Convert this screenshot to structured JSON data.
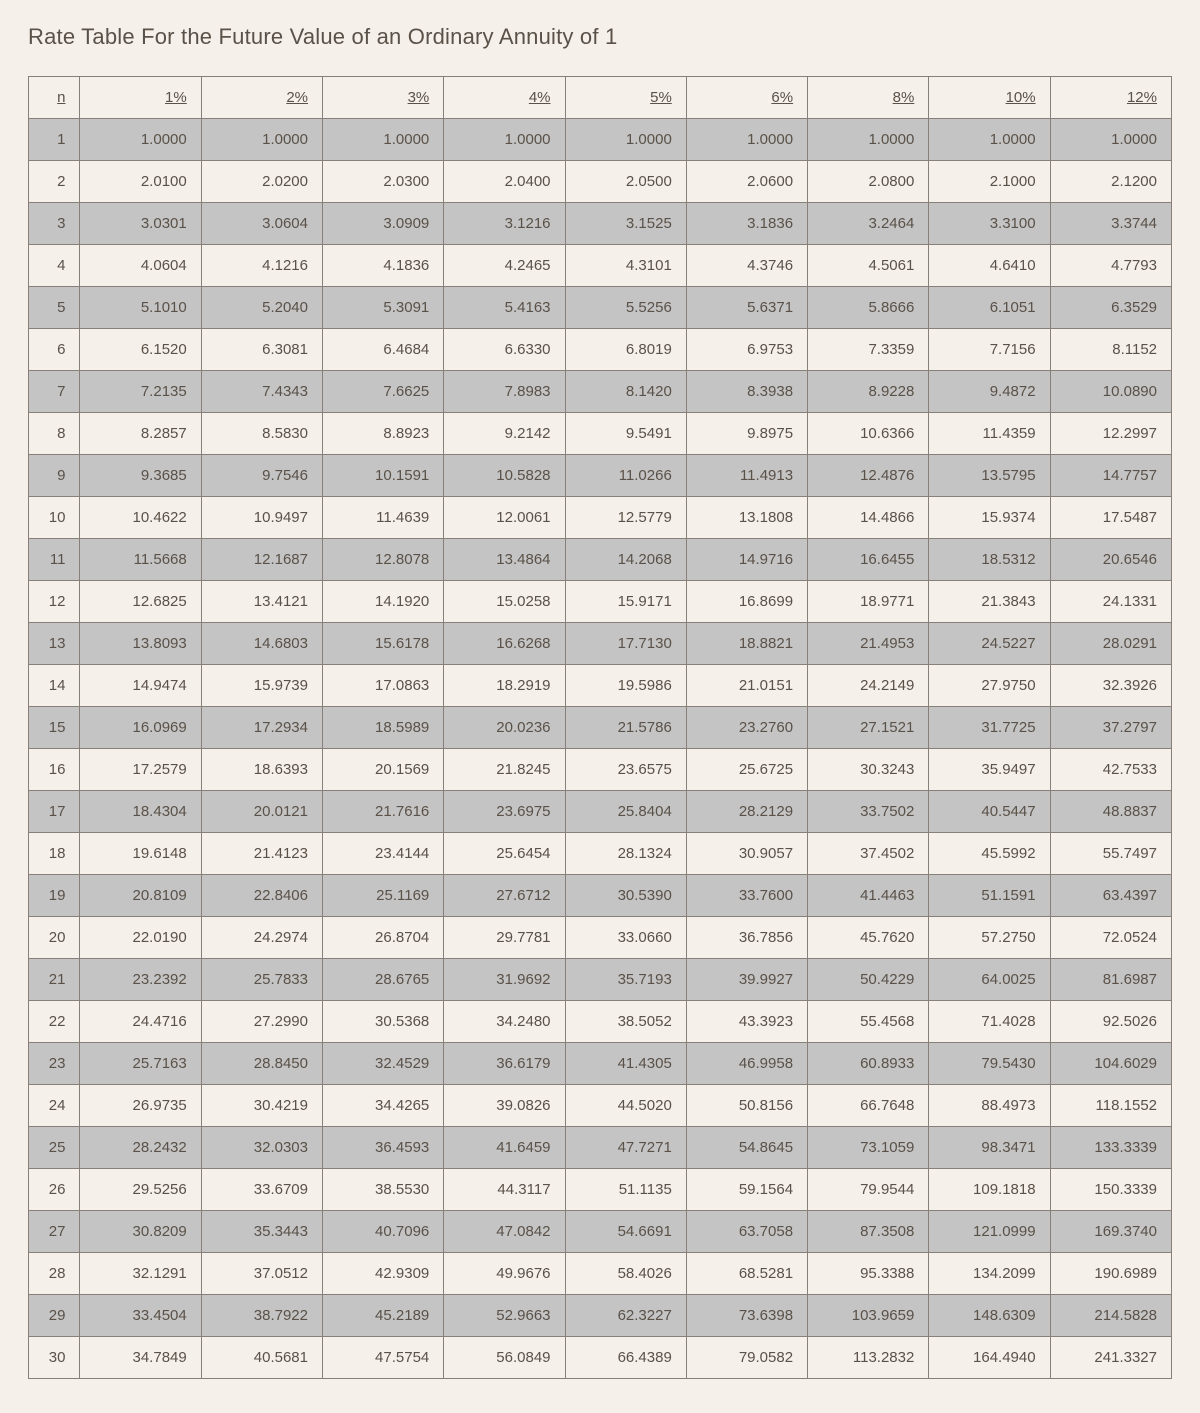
{
  "title": "Rate Table For the Future Value of an Ordinary Annuity of 1",
  "table": {
    "type": "table",
    "background_color": "#f5f0ea",
    "border_color": "#888078",
    "stripe_odd_color": "#c4c4c4",
    "stripe_even_color": "#f5f0ea",
    "text_color": "#5a5148",
    "font_size": 15,
    "title_fontsize": 22,
    "n_col_width_pct": 4.5,
    "rate_col_width_pct": 10.6,
    "columns": [
      "n",
      "1%",
      "2%",
      "3%",
      "4%",
      "5%",
      "6%",
      "8%",
      "10%",
      "12%"
    ],
    "rows": [
      [
        "1",
        "1.0000",
        "1.0000",
        "1.0000",
        "1.0000",
        "1.0000",
        "1.0000",
        "1.0000",
        "1.0000",
        "1.0000"
      ],
      [
        "2",
        "2.0100",
        "2.0200",
        "2.0300",
        "2.0400",
        "2.0500",
        "2.0600",
        "2.0800",
        "2.1000",
        "2.1200"
      ],
      [
        "3",
        "3.0301",
        "3.0604",
        "3.0909",
        "3.1216",
        "3.1525",
        "3.1836",
        "3.2464",
        "3.3100",
        "3.3744"
      ],
      [
        "4",
        "4.0604",
        "4.1216",
        "4.1836",
        "4.2465",
        "4.3101",
        "4.3746",
        "4.5061",
        "4.6410",
        "4.7793"
      ],
      [
        "5",
        "5.1010",
        "5.2040",
        "5.3091",
        "5.4163",
        "5.5256",
        "5.6371",
        "5.8666",
        "6.1051",
        "6.3529"
      ],
      [
        "6",
        "6.1520",
        "6.3081",
        "6.4684",
        "6.6330",
        "6.8019",
        "6.9753",
        "7.3359",
        "7.7156",
        "8.1152"
      ],
      [
        "7",
        "7.2135",
        "7.4343",
        "7.6625",
        "7.8983",
        "8.1420",
        "8.3938",
        "8.9228",
        "9.4872",
        "10.0890"
      ],
      [
        "8",
        "8.2857",
        "8.5830",
        "8.8923",
        "9.2142",
        "9.5491",
        "9.8975",
        "10.6366",
        "11.4359",
        "12.2997"
      ],
      [
        "9",
        "9.3685",
        "9.7546",
        "10.1591",
        "10.5828",
        "11.0266",
        "11.4913",
        "12.4876",
        "13.5795",
        "14.7757"
      ],
      [
        "10",
        "10.4622",
        "10.9497",
        "11.4639",
        "12.0061",
        "12.5779",
        "13.1808",
        "14.4866",
        "15.9374",
        "17.5487"
      ],
      [
        "11",
        "11.5668",
        "12.1687",
        "12.8078",
        "13.4864",
        "14.2068",
        "14.9716",
        "16.6455",
        "18.5312",
        "20.6546"
      ],
      [
        "12",
        "12.6825",
        "13.4121",
        "14.1920",
        "15.0258",
        "15.9171",
        "16.8699",
        "18.9771",
        "21.3843",
        "24.1331"
      ],
      [
        "13",
        "13.8093",
        "14.6803",
        "15.6178",
        "16.6268",
        "17.7130",
        "18.8821",
        "21.4953",
        "24.5227",
        "28.0291"
      ],
      [
        "14",
        "14.9474",
        "15.9739",
        "17.0863",
        "18.2919",
        "19.5986",
        "21.0151",
        "24.2149",
        "27.9750",
        "32.3926"
      ],
      [
        "15",
        "16.0969",
        "17.2934",
        "18.5989",
        "20.0236",
        "21.5786",
        "23.2760",
        "27.1521",
        "31.7725",
        "37.2797"
      ],
      [
        "16",
        "17.2579",
        "18.6393",
        "20.1569",
        "21.8245",
        "23.6575",
        "25.6725",
        "30.3243",
        "35.9497",
        "42.7533"
      ],
      [
        "17",
        "18.4304",
        "20.0121",
        "21.7616",
        "23.6975",
        "25.8404",
        "28.2129",
        "33.7502",
        "40.5447",
        "48.8837"
      ],
      [
        "18",
        "19.6148",
        "21.4123",
        "23.4144",
        "25.6454",
        "28.1324",
        "30.9057",
        "37.4502",
        "45.5992",
        "55.7497"
      ],
      [
        "19",
        "20.8109",
        "22.8406",
        "25.1169",
        "27.6712",
        "30.5390",
        "33.7600",
        "41.4463",
        "51.1591",
        "63.4397"
      ],
      [
        "20",
        "22.0190",
        "24.2974",
        "26.8704",
        "29.7781",
        "33.0660",
        "36.7856",
        "45.7620",
        "57.2750",
        "72.0524"
      ],
      [
        "21",
        "23.2392",
        "25.7833",
        "28.6765",
        "31.9692",
        "35.7193",
        "39.9927",
        "50.4229",
        "64.0025",
        "81.6987"
      ],
      [
        "22",
        "24.4716",
        "27.2990",
        "30.5368",
        "34.2480",
        "38.5052",
        "43.3923",
        "55.4568",
        "71.4028",
        "92.5026"
      ],
      [
        "23",
        "25.7163",
        "28.8450",
        "32.4529",
        "36.6179",
        "41.4305",
        "46.9958",
        "60.8933",
        "79.5430",
        "104.6029"
      ],
      [
        "24",
        "26.9735",
        "30.4219",
        "34.4265",
        "39.0826",
        "44.5020",
        "50.8156",
        "66.7648",
        "88.4973",
        "118.1552"
      ],
      [
        "25",
        "28.2432",
        "32.0303",
        "36.4593",
        "41.6459",
        "47.7271",
        "54.8645",
        "73.1059",
        "98.3471",
        "133.3339"
      ],
      [
        "26",
        "29.5256",
        "33.6709",
        "38.5530",
        "44.3117",
        "51.1135",
        "59.1564",
        "79.9544",
        "109.1818",
        "150.3339"
      ],
      [
        "27",
        "30.8209",
        "35.3443",
        "40.7096",
        "47.0842",
        "54.6691",
        "63.7058",
        "87.3508",
        "121.0999",
        "169.3740"
      ],
      [
        "28",
        "32.1291",
        "37.0512",
        "42.9309",
        "49.9676",
        "58.4026",
        "68.5281",
        "95.3388",
        "134.2099",
        "190.6989"
      ],
      [
        "29",
        "33.4504",
        "38.7922",
        "45.2189",
        "52.9663",
        "62.3227",
        "73.6398",
        "103.9659",
        "148.6309",
        "214.5828"
      ],
      [
        "30",
        "34.7849",
        "40.5681",
        "47.5754",
        "56.0849",
        "66.4389",
        "79.0582",
        "113.2832",
        "164.4940",
        "241.3327"
      ]
    ]
  }
}
